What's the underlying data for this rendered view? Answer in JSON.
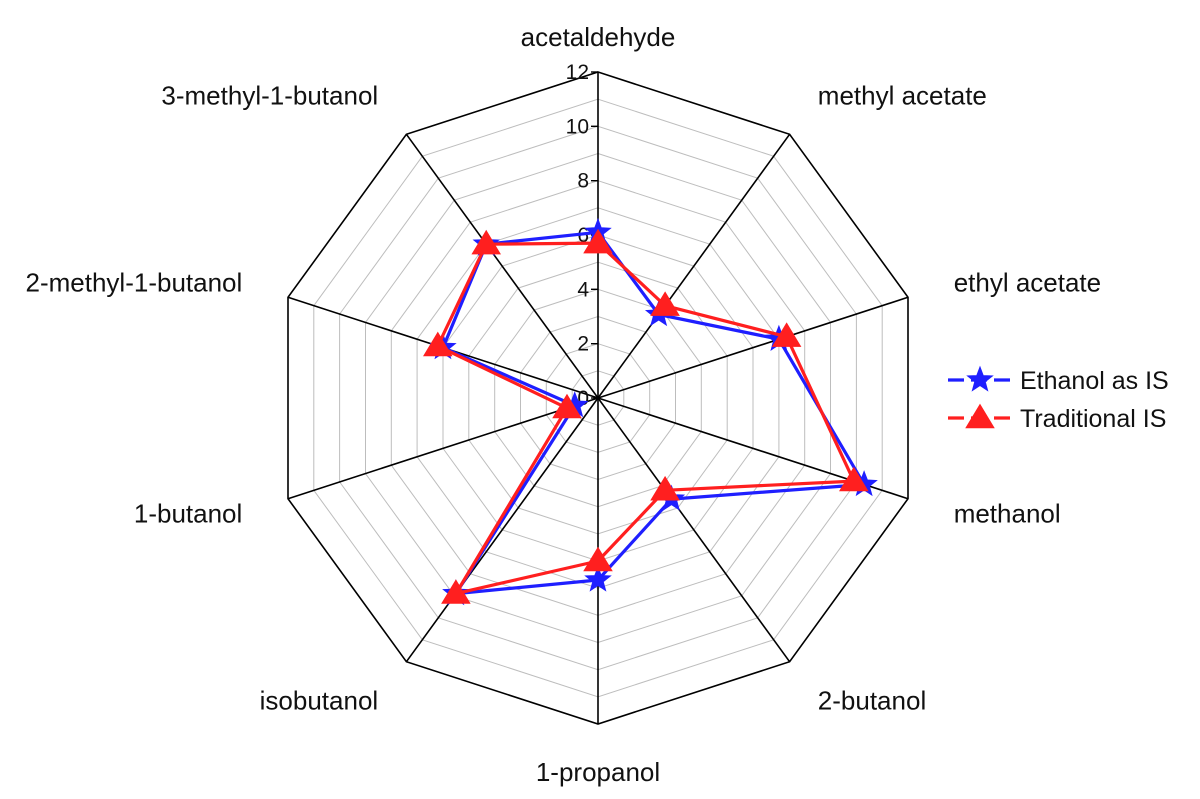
{
  "chart_data": {
    "type": "radar",
    "title": "",
    "categories": [
      "acetaldehyde",
      "methyl acetate",
      "ethyl acetate",
      "methanol",
      "2-butanol",
      "1-propanol",
      "isobutanol",
      "1-butanol",
      "2-methyl-1-butanol",
      "3-methyl-1-butanol"
    ],
    "ticks": [
      "0",
      "2",
      "4",
      "6",
      "8",
      "10",
      "12"
    ],
    "range": [
      0,
      12
    ],
    "grid": true,
    "legend_position": "right",
    "series": [
      {
        "name": "Ethanol as IS",
        "color": "#1f1fff",
        "marker": "star",
        "values": [
          6.1,
          3.8,
          7.0,
          10.3,
          4.6,
          6.7,
          8.9,
          0.9,
          6.0,
          7.0
        ]
      },
      {
        "name": "Traditional IS",
        "color": "#ff1f1f",
        "marker": "triangle",
        "values": [
          5.7,
          4.2,
          7.3,
          9.9,
          4.2,
          6.0,
          8.9,
          1.2,
          6.2,
          7.0
        ]
      }
    ]
  }
}
